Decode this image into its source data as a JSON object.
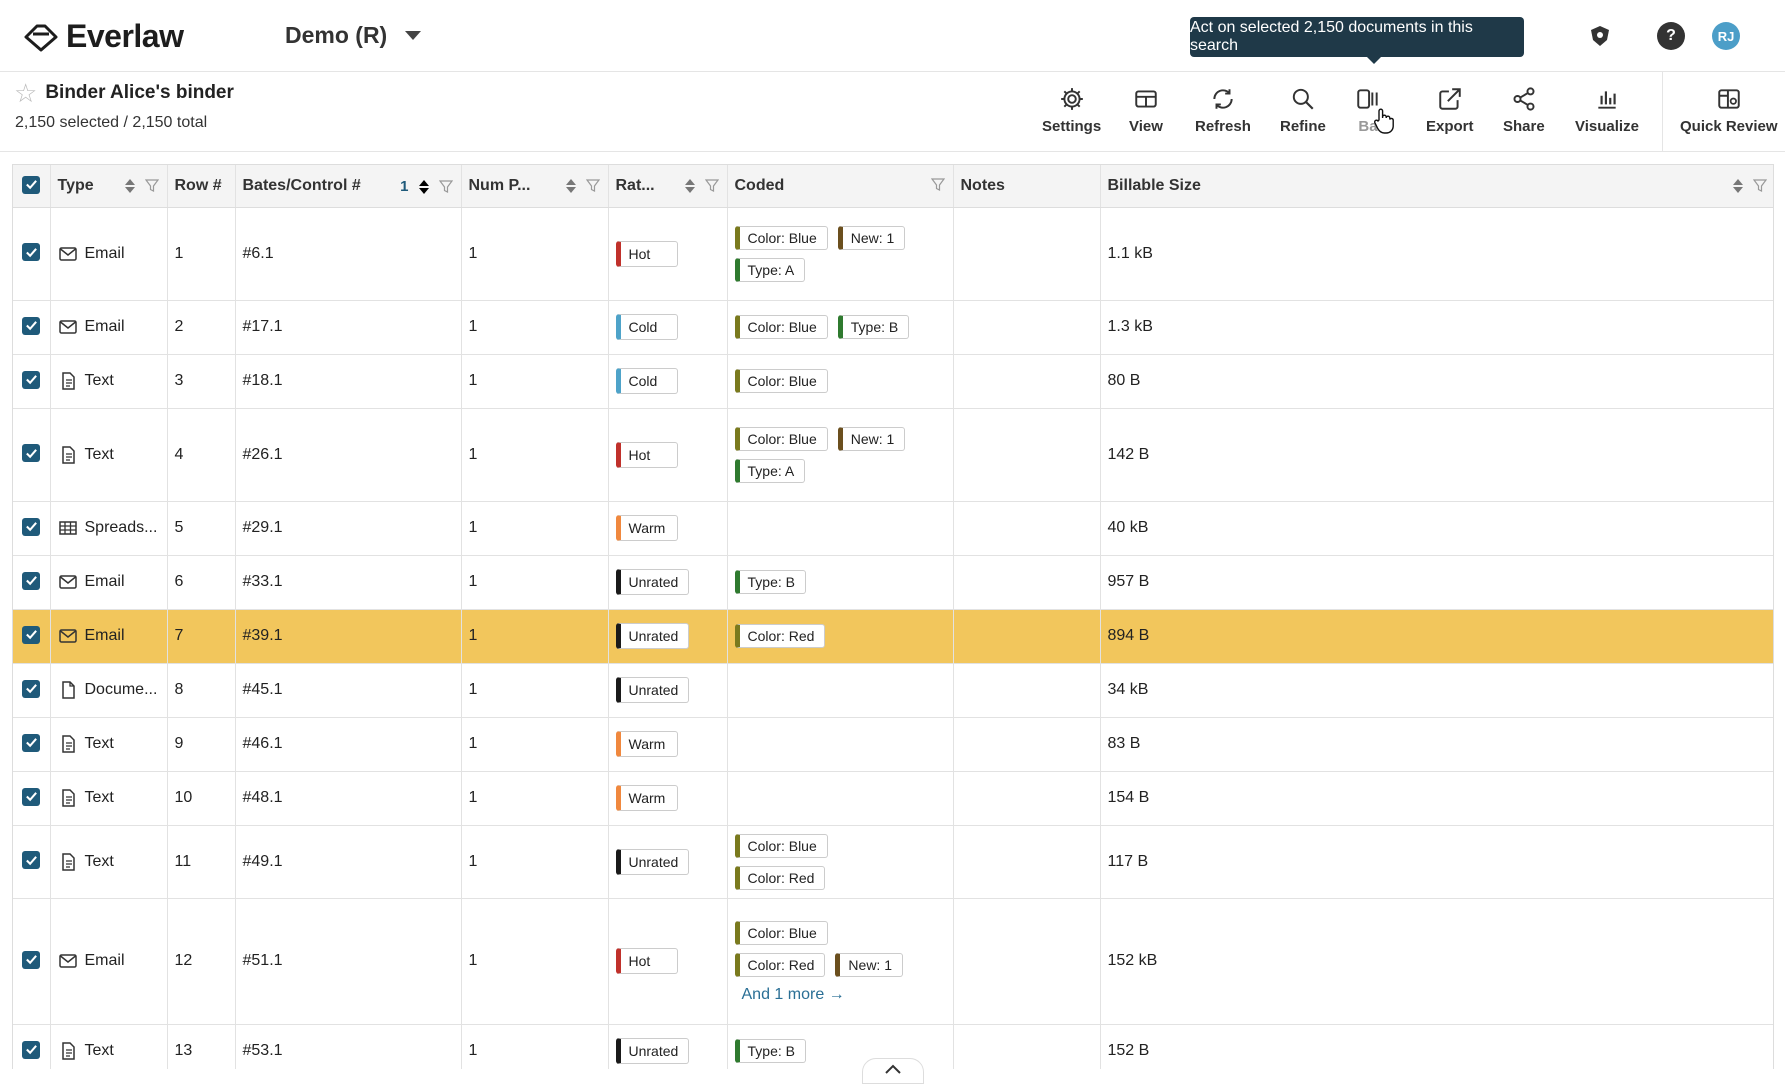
{
  "app": {
    "name": "Everlaw",
    "project": "Demo (R)"
  },
  "tooltip": "Act on selected 2,150 documents in this search",
  "user": {
    "initials": "RJ"
  },
  "binder": {
    "title": "Binder Alice's binder",
    "selection": "2,150 selected / 2,150 total"
  },
  "toolbar": [
    {
      "label": "Settings",
      "icon": "gear-icon"
    },
    {
      "label": "View",
      "icon": "layout-icon"
    },
    {
      "label": "Refresh",
      "icon": "refresh-icon"
    },
    {
      "label": "Refine",
      "icon": "search-icon"
    },
    {
      "label": "Ba",
      "icon": "batch-icon"
    },
    {
      "label": "Export",
      "icon": "export-icon"
    },
    {
      "label": "Share",
      "icon": "share-icon"
    },
    {
      "label": "Visualize",
      "icon": "bar-chart-icon"
    },
    {
      "label": "Quick Review",
      "icon": "quick-review-icon"
    }
  ],
  "columns": {
    "type": "Type",
    "row": "Row #",
    "bates": "Bates/Control #",
    "bates_sort": "1",
    "nump": "Num P...",
    "rating": "Rat...",
    "coded": "Coded",
    "notes": "Notes",
    "size": "Billable Size"
  },
  "colors": {
    "hot": "#c0312b",
    "cold": "#4ea3c9",
    "warm": "#f0883e",
    "unrated": "#1a1a1a",
    "color_tag": "#7a7a1e",
    "type_tag": "#2f7a2f",
    "new_tag": "#6b4f1e",
    "accent": "#1f5a7a",
    "highlight": "#f2c65c"
  },
  "rows": [
    {
      "type": "Email",
      "icon": "email-icon",
      "row": "1",
      "bates": "#6.1",
      "nump": "1",
      "rating": "Hot",
      "tags": [
        {
          "t": "Color: Blue",
          "k": "color"
        },
        {
          "t": "New: 1",
          "k": "new"
        },
        {
          "t": "Type: A",
          "k": "type"
        }
      ],
      "more": "",
      "size": "1.1 kB",
      "h": 93
    },
    {
      "type": "Email",
      "icon": "email-icon",
      "row": "2",
      "bates": "#17.1",
      "nump": "1",
      "rating": "Cold",
      "tags": [
        {
          "t": "Color: Blue",
          "k": "color"
        },
        {
          "t": "Type: B",
          "k": "type"
        }
      ],
      "more": "",
      "size": "1.3 kB",
      "h": 54
    },
    {
      "type": "Text",
      "icon": "text-doc-icon",
      "row": "3",
      "bates": "#18.1",
      "nump": "1",
      "rating": "Cold",
      "tags": [
        {
          "t": "Color: Blue",
          "k": "color"
        }
      ],
      "more": "",
      "size": "80 B",
      "h": 54
    },
    {
      "type": "Text",
      "icon": "text-doc-icon",
      "row": "4",
      "bates": "#26.1",
      "nump": "1",
      "rating": "Hot",
      "tags": [
        {
          "t": "Color: Blue",
          "k": "color"
        },
        {
          "t": "New: 1",
          "k": "new"
        },
        {
          "t": "Type: A",
          "k": "type"
        }
      ],
      "more": "",
      "size": "142 B",
      "h": 93
    },
    {
      "type": "Spreads...",
      "icon": "spreadsheet-icon",
      "row": "5",
      "bates": "#29.1",
      "nump": "1",
      "rating": "Warm",
      "tags": [],
      "more": "",
      "size": "40 kB",
      "h": 54
    },
    {
      "type": "Email",
      "icon": "email-icon",
      "row": "6",
      "bates": "#33.1",
      "nump": "1",
      "rating": "Unrated",
      "tags": [
        {
          "t": "Type: B",
          "k": "type"
        }
      ],
      "more": "",
      "size": "957 B",
      "h": 54
    },
    {
      "type": "Email",
      "icon": "email-icon",
      "row": "7",
      "bates": "#39.1",
      "nump": "1",
      "rating": "Unrated",
      "tags": [
        {
          "t": "Color: Red",
          "k": "color"
        }
      ],
      "more": "",
      "size": "894 B",
      "h": 54,
      "highlight": true
    },
    {
      "type": "Docume...",
      "icon": "document-icon",
      "row": "8",
      "bates": "#45.1",
      "nump": "1",
      "rating": "Unrated",
      "tags": [],
      "more": "",
      "size": "34 kB",
      "h": 54
    },
    {
      "type": "Text",
      "icon": "text-doc-icon",
      "row": "9",
      "bates": "#46.1",
      "nump": "1",
      "rating": "Warm",
      "tags": [],
      "more": "",
      "size": "83 B",
      "h": 54
    },
    {
      "type": "Text",
      "icon": "text-doc-icon",
      "row": "10",
      "bates": "#48.1",
      "nump": "1",
      "rating": "Warm",
      "tags": [],
      "more": "",
      "size": "154 B",
      "h": 54
    },
    {
      "type": "Text",
      "icon": "text-doc-icon",
      "row": "11",
      "bates": "#49.1",
      "nump": "1",
      "rating": "Unrated",
      "tags": [
        {
          "t": "Color: Blue",
          "k": "color"
        },
        {
          "t": "Color: Red",
          "k": "color"
        }
      ],
      "more": "",
      "size": "117 B",
      "h": 54
    },
    {
      "type": "Email",
      "icon": "email-icon",
      "row": "12",
      "bates": "#51.1",
      "nump": "1",
      "rating": "Hot",
      "tags": [
        {
          "t": "Color: Blue",
          "k": "color"
        },
        {
          "t": "Color: Red",
          "k": "color"
        },
        {
          "t": "New: 1",
          "k": "new"
        }
      ],
      "more": "And 1 more →",
      "size": "152 kB",
      "h": 126
    },
    {
      "type": "Text",
      "icon": "text-doc-icon",
      "row": "13",
      "bates": "#53.1",
      "nump": "1",
      "rating": "Unrated",
      "tags": [
        {
          "t": "Type: B",
          "k": "type"
        }
      ],
      "more": "",
      "size": "152 B",
      "h": 54
    }
  ]
}
